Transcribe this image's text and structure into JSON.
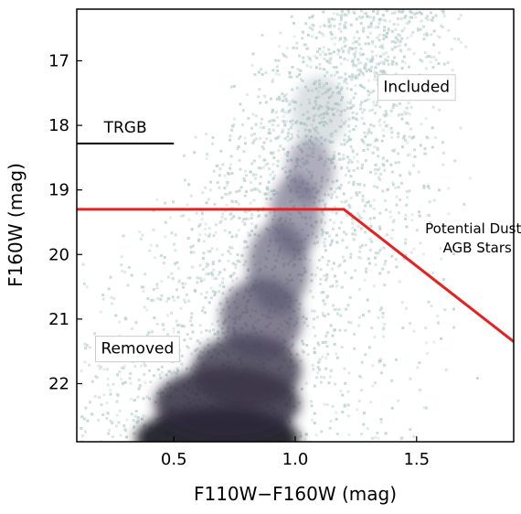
{
  "chart_data": {
    "type": "heatmap",
    "title": "",
    "xlabel": "F110W−F160W (mag)",
    "ylabel": "F160W (mag)",
    "xlim": [
      0.1,
      1.9
    ],
    "ylim": [
      22.9,
      16.2
    ],
    "y_inverted": true,
    "xticks": [
      0.5,
      1.0,
      1.5
    ],
    "xtick_labels": [
      "0.5",
      "1.0",
      "1.5"
    ],
    "yticks": [
      17,
      18,
      19,
      20,
      21,
      22
    ],
    "ytick_labels": [
      "17",
      "18",
      "19",
      "20",
      "21",
      "22"
    ],
    "grid": false,
    "colormap": "bone_r",
    "density_features": [
      {
        "x": 0.68,
        "y": 22.8,
        "density": 1.0
      },
      {
        "x": 0.8,
        "y": 21.8,
        "density": 0.8
      },
      {
        "x": 1.0,
        "y": 19.6,
        "density": 0.6
      },
      {
        "x": 1.08,
        "y": 18.6,
        "density": 0.55
      },
      {
        "x": 1.1,
        "y": 17.4,
        "density": 0.2
      }
    ],
    "boundary_line": {
      "color": "#e8201f",
      "x": [
        0.1,
        1.2,
        1.9
      ],
      "y": [
        19.3,
        19.3,
        21.35
      ]
    },
    "trgb_line": {
      "label": "TRGB",
      "x": [
        0.1,
        0.5
      ],
      "y": 18.28,
      "color": "#000000"
    },
    "annotations": [
      {
        "text": "Included",
        "x": 1.5,
        "y": 17.4,
        "boxed": true
      },
      {
        "text": "Removed",
        "x": 0.35,
        "y": 21.45,
        "boxed": true
      },
      {
        "text": "Potential Dusty",
        "x": 1.72,
        "y": 19.6,
        "boxed": false
      },
      {
        "text": "AGB Stars",
        "x": 1.72,
        "y": 19.9,
        "boxed": false
      }
    ]
  }
}
